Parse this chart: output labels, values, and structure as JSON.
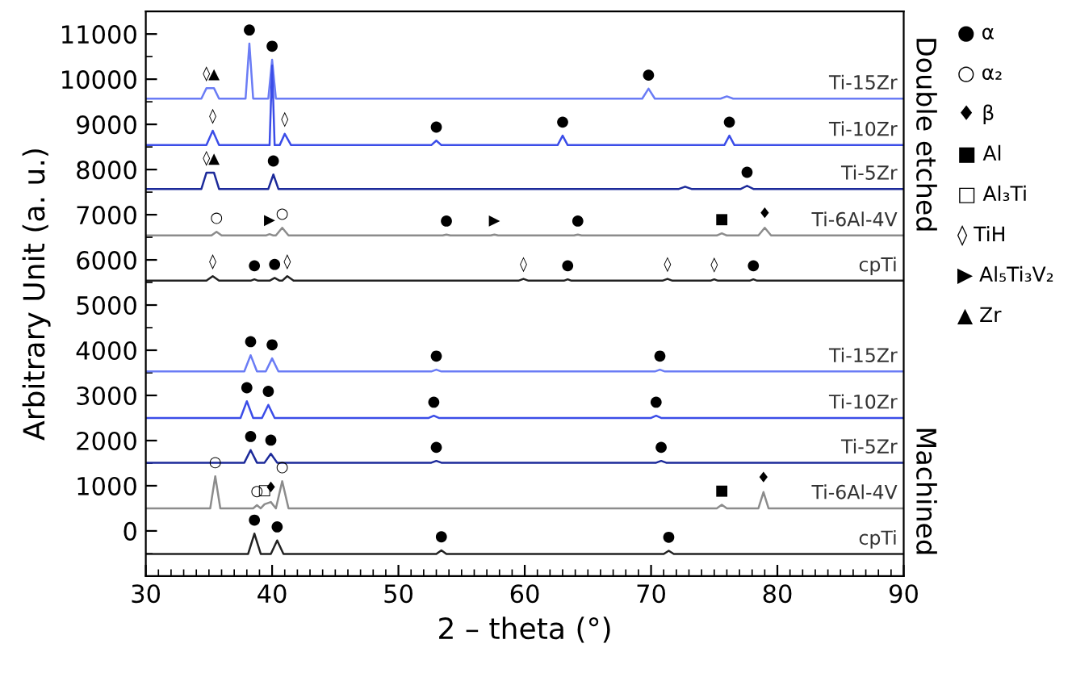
{
  "chart_data": {
    "type": "line",
    "xlabel": "2 – theta (°)",
    "ylabel": "Arbitrary Unit (a. u.)",
    "xlim": [
      30,
      90
    ],
    "xticks": [
      30,
      40,
      50,
      60,
      70,
      80,
      90
    ],
    "ylim": [
      -1000,
      11500
    ],
    "yticks": [
      0,
      1000,
      2000,
      3000,
      4000,
      5000,
      6000,
      7000,
      8000,
      9000,
      10000,
      11000
    ],
    "grid": false,
    "series": [
      {
        "name": "Ti-15Zr",
        "color": "#6a7cf5",
        "x": [
          30,
          34.4,
          34.8,
          35.4,
          35.8,
          37.9,
          38.2,
          38.5,
          39.7,
          40.0,
          40.3,
          69.3,
          69.8,
          70.3,
          75.5,
          76.0,
          76.5,
          90
        ],
        "values": [
          9570,
          9570,
          9800,
          9800,
          9570,
          9570,
          10790,
          9570,
          9570,
          10430,
          9570,
          9570,
          9790,
          9570,
          9570,
          9620,
          9570,
          9570
        ]
      },
      {
        "name": "Ti-10Zr",
        "color": "#3b4de8",
        "x": [
          30,
          34.8,
          35.3,
          35.8,
          39.8,
          40.0,
          40.2,
          40.6,
          41.0,
          41.5,
          52.6,
          53.0,
          53.4,
          62.6,
          63.0,
          63.4,
          75.8,
          76.2,
          76.6,
          90
        ],
        "values": [
          8540,
          8540,
          8860,
          8540,
          8540,
          10300,
          8540,
          8540,
          8790,
          8540,
          8540,
          8640,
          8540,
          8540,
          8750,
          8540,
          8540,
          8750,
          8540,
          8540
        ]
      },
      {
        "name": "Ti-5Zr",
        "color": "#1c2a9a",
        "x": [
          30,
          34.4,
          34.8,
          35.4,
          35.8,
          39.7,
          40.1,
          40.5,
          72.2,
          72.7,
          73.2,
          77.1,
          77.6,
          78.1,
          90
        ],
        "values": [
          7570,
          7570,
          7930,
          7930,
          7570,
          7570,
          7890,
          7570,
          7570,
          7620,
          7570,
          7570,
          7640,
          7570,
          7570
        ]
      },
      {
        "name": "Ti-6Al-4V",
        "color": "#8c8c8c",
        "x": [
          30,
          35.2,
          35.6,
          36.0,
          39.5,
          39.8,
          40.1,
          40.3,
          40.8,
          41.3,
          53.5,
          53.8,
          54.1,
          57.3,
          57.6,
          57.9,
          63.9,
          64.2,
          64.5,
          75.2,
          75.6,
          76.0,
          78.5,
          79.0,
          79.5,
          90
        ],
        "values": [
          6540,
          6540,
          6620,
          6540,
          6540,
          6570,
          6540,
          6540,
          6710,
          6540,
          6540,
          6560,
          6540,
          6540,
          6560,
          6540,
          6540,
          6560,
          6540,
          6540,
          6590,
          6540,
          6540,
          6710,
          6540,
          6540
        ]
      },
      {
        "name": "cpTi",
        "color": "#222222",
        "x": [
          30,
          34.8,
          35.3,
          35.8,
          38.3,
          38.6,
          38.9,
          39.8,
          40.2,
          40.6,
          40.8,
          41.2,
          41.7,
          59.5,
          59.9,
          60.3,
          63.1,
          63.4,
          63.7,
          70.9,
          71.3,
          71.7,
          74.7,
          75.0,
          75.3,
          77.8,
          78.1,
          78.4,
          90
        ],
        "values": [
          5540,
          5540,
          5640,
          5540,
          5540,
          5570,
          5540,
          5540,
          5600,
          5540,
          5540,
          5640,
          5540,
          5540,
          5580,
          5540,
          5540,
          5570,
          5540,
          5540,
          5580,
          5540,
          5540,
          5570,
          5540,
          5540,
          5570,
          5540,
          5540
        ]
      },
      {
        "name": "Ti-15Zr",
        "color": "#6a7cf5",
        "x": [
          30,
          37.8,
          38.3,
          38.8,
          39.5,
          40.0,
          40.5,
          52.6,
          53.0,
          53.4,
          70.3,
          70.7,
          71.1,
          90
        ],
        "values": [
          3530,
          3530,
          3890,
          3530,
          3530,
          3820,
          3530,
          3530,
          3570,
          3530,
          3530,
          3570,
          3530,
          3530
        ]
      },
      {
        "name": "Ti-10Zr",
        "color": "#3b4de8",
        "x": [
          30,
          37.5,
          38.0,
          38.5,
          39.2,
          39.7,
          40.2,
          52.4,
          52.8,
          53.2,
          70.0,
          70.4,
          70.8,
          90
        ],
        "values": [
          2500,
          2500,
          2870,
          2500,
          2500,
          2790,
          2500,
          2500,
          2550,
          2500,
          2500,
          2550,
          2500,
          2500
        ]
      },
      {
        "name": "Ti-5Zr",
        "color": "#1c2a9a",
        "x": [
          30,
          37.8,
          38.3,
          38.8,
          39.4,
          39.9,
          40.4,
          52.6,
          53.0,
          53.4,
          70.4,
          70.8,
          71.2,
          90
        ],
        "values": [
          1510,
          1510,
          1790,
          1510,
          1510,
          1710,
          1510,
          1510,
          1550,
          1510,
          1510,
          1550,
          1510,
          1510
        ]
      },
      {
        "name": "Ti-6Al-4V",
        "color": "#8c8c8c",
        "x": [
          30,
          35.1,
          35.5,
          35.9,
          38.5,
          38.8,
          39.1,
          39.4,
          39.9,
          40.3,
          40.8,
          41.3,
          75.2,
          75.6,
          76.0,
          78.5,
          78.9,
          79.3,
          90
        ],
        "values": [
          500,
          500,
          1210,
          500,
          500,
          570,
          500,
          590,
          640,
          500,
          1100,
          500,
          500,
          580,
          500,
          500,
          860,
          500,
          500
        ]
      },
      {
        "name": "cpTi",
        "color": "#222222",
        "x": [
          30,
          38.1,
          38.6,
          39.1,
          39.9,
          40.4,
          40.9,
          53.0,
          53.4,
          53.8,
          71.0,
          71.4,
          71.8,
          90
        ],
        "values": [
          -510,
          -510,
          -60,
          -510,
          -510,
          -210,
          -510,
          -510,
          -430,
          -510,
          -510,
          -440,
          -510,
          -510
        ]
      }
    ],
    "annotations": [
      {
        "text": "◊",
        "x": 34.8,
        "y": 9800
      },
      {
        "text": "▲",
        "x": 35.4,
        "y": 9800
      },
      {
        "text": "●",
        "x": 38.2,
        "y": 10790
      },
      {
        "text": "●",
        "x": 40.0,
        "y": 10430
      },
      {
        "text": "●",
        "x": 69.8,
        "y": 9790
      },
      {
        "text": "◊",
        "x": 35.3,
        "y": 8860
      },
      {
        "text": "◊",
        "x": 41.0,
        "y": 8790
      },
      {
        "text": "●",
        "x": 53.0,
        "y": 8640
      },
      {
        "text": "●",
        "x": 63.0,
        "y": 8750
      },
      {
        "text": "●",
        "x": 76.2,
        "y": 8750
      },
      {
        "text": "◊",
        "x": 34.8,
        "y": 7930
      },
      {
        "text": "▲",
        "x": 35.4,
        "y": 7930
      },
      {
        "text": "●",
        "x": 40.1,
        "y": 7890
      },
      {
        "text": "●",
        "x": 77.6,
        "y": 7640
      },
      {
        "text": "○",
        "x": 35.6,
        "y": 6620
      },
      {
        "text": "▶",
        "x": 39.8,
        "y": 6570
      },
      {
        "text": "○",
        "x": 40.8,
        "y": 6710
      },
      {
        "text": "●",
        "x": 53.8,
        "y": 6560
      },
      {
        "text": "▶",
        "x": 57.6,
        "y": 6560
      },
      {
        "text": "●",
        "x": 64.2,
        "y": 6560
      },
      {
        "text": "■",
        "x": 75.6,
        "y": 6590
      },
      {
        "text": "♦",
        "x": 79.0,
        "y": 6710
      },
      {
        "text": "◊",
        "x": 35.3,
        "y": 5640
      },
      {
        "text": "●",
        "x": 38.6,
        "y": 5570
      },
      {
        "text": "●",
        "x": 40.2,
        "y": 5600
      },
      {
        "text": "◊",
        "x": 41.2,
        "y": 5640
      },
      {
        "text": "◊",
        "x": 59.9,
        "y": 5580
      },
      {
        "text": "●",
        "x": 63.4,
        "y": 5570
      },
      {
        "text": "◊",
        "x": 71.3,
        "y": 5580
      },
      {
        "text": "◊",
        "x": 75.0,
        "y": 5570
      },
      {
        "text": "●",
        "x": 78.1,
        "y": 5570
      },
      {
        "text": "●",
        "x": 38.3,
        "y": 3890
      },
      {
        "text": "●",
        "x": 40.0,
        "y": 3820
      },
      {
        "text": "●",
        "x": 53.0,
        "y": 3570
      },
      {
        "text": "●",
        "x": 70.7,
        "y": 3570
      },
      {
        "text": "●",
        "x": 38.0,
        "y": 2870
      },
      {
        "text": "●",
        "x": 39.7,
        "y": 2790
      },
      {
        "text": "●",
        "x": 52.8,
        "y": 2550
      },
      {
        "text": "●",
        "x": 70.4,
        "y": 2550
      },
      {
        "text": "●",
        "x": 38.3,
        "y": 1790
      },
      {
        "text": "●",
        "x": 39.9,
        "y": 1710
      },
      {
        "text": "●",
        "x": 53.0,
        "y": 1550
      },
      {
        "text": "●",
        "x": 70.8,
        "y": 1550
      },
      {
        "text": "○",
        "x": 35.5,
        "y": 1210
      },
      {
        "text": "○",
        "x": 38.8,
        "y": 570
      },
      {
        "text": "□",
        "x": 39.4,
        "y": 590
      },
      {
        "text": "♦",
        "x": 39.9,
        "y": 640
      },
      {
        "text": "○",
        "x": 40.8,
        "y": 1100
      },
      {
        "text": "■",
        "x": 75.6,
        "y": 580
      },
      {
        "text": "♦",
        "x": 78.9,
        "y": 860
      },
      {
        "text": "●",
        "x": 38.6,
        "y": -60
      },
      {
        "text": "●",
        "x": 40.4,
        "y": -210
      },
      {
        "text": "●",
        "x": 53.4,
        "y": -430
      },
      {
        "text": "●",
        "x": 71.4,
        "y": -440
      },
      "● α",
      "○ α₂",
      "♦ β",
      "■ Al",
      "□ Al₃Ti",
      "◊ TiH",
      "▶ Al₅Ti₃V₂",
      "▲ Zr",
      "Double etched",
      "Machined"
    ]
  }
}
